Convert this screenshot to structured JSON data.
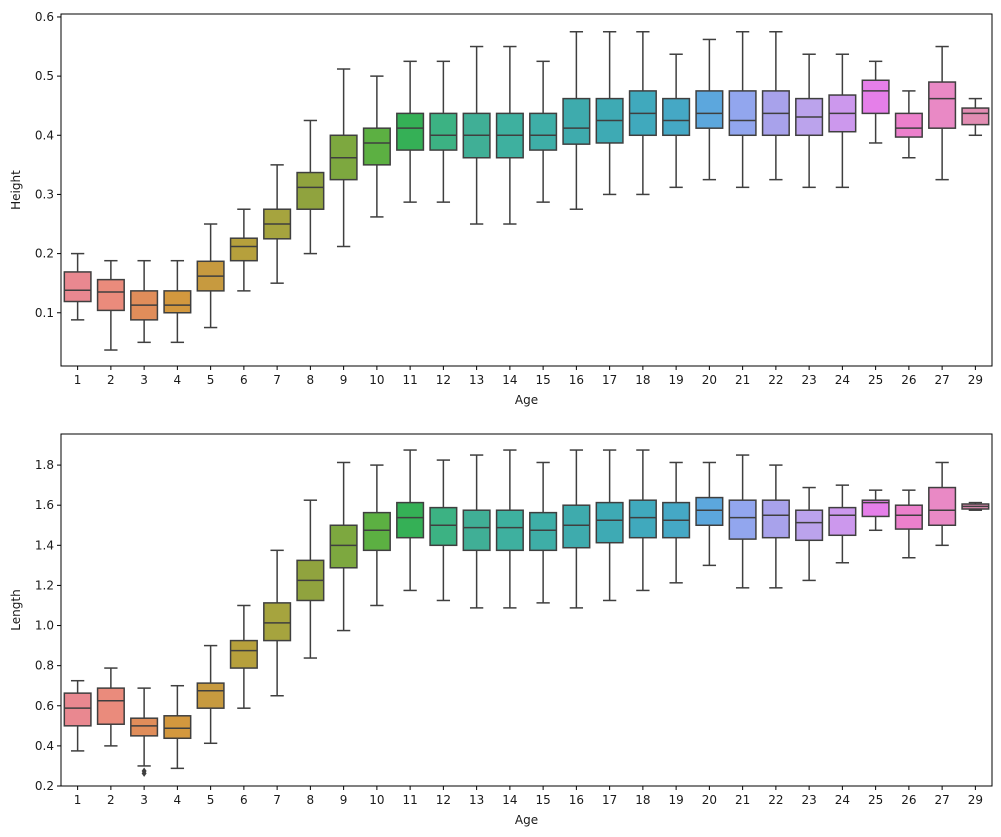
{
  "chart_data": [
    {
      "type": "boxplot",
      "xlabel": "Age",
      "ylabel": "Height",
      "ylim": [
        0.01,
        0.605
      ],
      "yticks": [
        0.1,
        0.2,
        0.3,
        0.4,
        0.5,
        0.6
      ],
      "ytick_labels": [
        "0.1",
        "0.2",
        "0.3",
        "0.4",
        "0.5",
        "0.6"
      ],
      "grid": false,
      "categories": [
        "1",
        "2",
        "3",
        "4",
        "5",
        "6",
        "7",
        "8",
        "9",
        "10",
        "11",
        "12",
        "13",
        "14",
        "15",
        "16",
        "17",
        "18",
        "19",
        "20",
        "21",
        "22",
        "23",
        "24",
        "25",
        "26",
        "27",
        "29"
      ],
      "boxes": [
        {
          "whislo": 0.088,
          "q1": 0.119,
          "med": 0.138,
          "q3": 0.169,
          "whishi": 0.2,
          "fliers": []
        },
        {
          "whislo": 0.037,
          "q1": 0.104,
          "med": 0.135,
          "q3": 0.156,
          "whishi": 0.188,
          "fliers": []
        },
        {
          "whislo": 0.05,
          "q1": 0.088,
          "med": 0.113,
          "q3": 0.137,
          "whishi": 0.188,
          "fliers": []
        },
        {
          "whislo": 0.05,
          "q1": 0.1,
          "med": 0.113,
          "q3": 0.137,
          "whishi": 0.188,
          "fliers": []
        },
        {
          "whislo": 0.075,
          "q1": 0.137,
          "med": 0.162,
          "q3": 0.187,
          "whishi": 0.25,
          "fliers": []
        },
        {
          "whislo": 0.137,
          "q1": 0.188,
          "med": 0.212,
          "q3": 0.226,
          "whishi": 0.275,
          "fliers": []
        },
        {
          "whislo": 0.15,
          "q1": 0.225,
          "med": 0.25,
          "q3": 0.275,
          "whishi": 0.35,
          "fliers": []
        },
        {
          "whislo": 0.2,
          "q1": 0.275,
          "med": 0.312,
          "q3": 0.337,
          "whishi": 0.425,
          "fliers": []
        },
        {
          "whislo": 0.212,
          "q1": 0.325,
          "med": 0.362,
          "q3": 0.4,
          "whishi": 0.512,
          "fliers": []
        },
        {
          "whislo": 0.262,
          "q1": 0.35,
          "med": 0.387,
          "q3": 0.412,
          "whishi": 0.5,
          "fliers": []
        },
        {
          "whislo": 0.287,
          "q1": 0.375,
          "med": 0.412,
          "q3": 0.437,
          "whishi": 0.525,
          "fliers": []
        },
        {
          "whislo": 0.287,
          "q1": 0.375,
          "med": 0.4,
          "q3": 0.437,
          "whishi": 0.525,
          "fliers": []
        },
        {
          "whislo": 0.25,
          "q1": 0.362,
          "med": 0.4,
          "q3": 0.437,
          "whishi": 0.55,
          "fliers": []
        },
        {
          "whislo": 0.25,
          "q1": 0.362,
          "med": 0.4,
          "q3": 0.437,
          "whishi": 0.55,
          "fliers": []
        },
        {
          "whislo": 0.287,
          "q1": 0.375,
          "med": 0.4,
          "q3": 0.437,
          "whishi": 0.525,
          "fliers": []
        },
        {
          "whislo": 0.275,
          "q1": 0.385,
          "med": 0.412,
          "q3": 0.462,
          "whishi": 0.575,
          "fliers": []
        },
        {
          "whislo": 0.3,
          "q1": 0.387,
          "med": 0.425,
          "q3": 0.462,
          "whishi": 0.575,
          "fliers": []
        },
        {
          "whislo": 0.3,
          "q1": 0.4,
          "med": 0.437,
          "q3": 0.475,
          "whishi": 0.575,
          "fliers": []
        },
        {
          "whislo": 0.312,
          "q1": 0.4,
          "med": 0.425,
          "q3": 0.462,
          "whishi": 0.537,
          "fliers": []
        },
        {
          "whislo": 0.325,
          "q1": 0.412,
          "med": 0.437,
          "q3": 0.475,
          "whishi": 0.562,
          "fliers": []
        },
        {
          "whislo": 0.312,
          "q1": 0.4,
          "med": 0.425,
          "q3": 0.475,
          "whishi": 0.575,
          "fliers": []
        },
        {
          "whislo": 0.325,
          "q1": 0.4,
          "med": 0.437,
          "q3": 0.475,
          "whishi": 0.575,
          "fliers": []
        },
        {
          "whislo": 0.312,
          "q1": 0.4,
          "med": 0.431,
          "q3": 0.462,
          "whishi": 0.537,
          "fliers": []
        },
        {
          "whislo": 0.312,
          "q1": 0.406,
          "med": 0.437,
          "q3": 0.468,
          "whishi": 0.537,
          "fliers": []
        },
        {
          "whislo": 0.387,
          "q1": 0.437,
          "med": 0.475,
          "q3": 0.493,
          "whishi": 0.525,
          "fliers": []
        },
        {
          "whislo": 0.362,
          "q1": 0.397,
          "med": 0.412,
          "q3": 0.437,
          "whishi": 0.475,
          "fliers": []
        },
        {
          "whislo": 0.325,
          "q1": 0.412,
          "med": 0.462,
          "q3": 0.49,
          "whishi": 0.55,
          "fliers": []
        },
        {
          "whislo": 0.4,
          "q1": 0.418,
          "med": 0.437,
          "q3": 0.446,
          "whishi": 0.462,
          "fliers": []
        }
      ]
    },
    {
      "type": "boxplot",
      "xlabel": "Age",
      "ylabel": "Length",
      "ylim": [
        0.2,
        1.955
      ],
      "yticks": [
        0.2,
        0.4,
        0.6,
        0.8,
        1.0,
        1.2,
        1.4,
        1.6,
        1.8
      ],
      "ytick_labels": [
        "0.2",
        "0.4",
        "0.6",
        "0.8",
        "1.0",
        "1.2",
        "1.4",
        "1.6",
        "1.8"
      ],
      "grid": false,
      "categories": [
        "1",
        "2",
        "3",
        "4",
        "5",
        "6",
        "7",
        "8",
        "9",
        "10",
        "11",
        "12",
        "13",
        "14",
        "15",
        "16",
        "17",
        "18",
        "19",
        "20",
        "21",
        "22",
        "23",
        "24",
        "25",
        "26",
        "27",
        "29"
      ],
      "boxes": [
        {
          "whislo": 0.375,
          "q1": 0.5,
          "med": 0.588,
          "q3": 0.663,
          "whishi": 0.725,
          "fliers": []
        },
        {
          "whislo": 0.4,
          "q1": 0.508,
          "med": 0.625,
          "q3": 0.688,
          "whishi": 0.788,
          "fliers": []
        },
        {
          "whislo": 0.3,
          "q1": 0.45,
          "med": 0.5,
          "q3": 0.538,
          "whishi": 0.688,
          "fliers": [
            0.275,
            0.263
          ]
        },
        {
          "whislo": 0.288,
          "q1": 0.438,
          "med": 0.488,
          "q3": 0.55,
          "whishi": 0.7,
          "fliers": []
        },
        {
          "whislo": 0.413,
          "q1": 0.588,
          "med": 0.675,
          "q3": 0.713,
          "whishi": 0.9,
          "fliers": []
        },
        {
          "whislo": 0.588,
          "q1": 0.788,
          "med": 0.875,
          "q3": 0.925,
          "whishi": 1.1,
          "fliers": []
        },
        {
          "whislo": 0.65,
          "q1": 0.925,
          "med": 1.013,
          "q3": 1.113,
          "whishi": 1.375,
          "fliers": []
        },
        {
          "whislo": 0.838,
          "q1": 1.125,
          "med": 1.225,
          "q3": 1.325,
          "whishi": 1.625,
          "fliers": []
        },
        {
          "whislo": 0.975,
          "q1": 1.288,
          "med": 1.4,
          "q3": 1.5,
          "whishi": 1.813,
          "fliers": []
        },
        {
          "whislo": 1.1,
          "q1": 1.375,
          "med": 1.475,
          "q3": 1.563,
          "whishi": 1.8,
          "fliers": []
        },
        {
          "whislo": 1.175,
          "q1": 1.438,
          "med": 1.538,
          "q3": 1.613,
          "whishi": 1.875,
          "fliers": []
        },
        {
          "whislo": 1.125,
          "q1": 1.4,
          "med": 1.5,
          "q3": 1.588,
          "whishi": 1.825,
          "fliers": []
        },
        {
          "whislo": 1.088,
          "q1": 1.375,
          "med": 1.488,
          "q3": 1.575,
          "whishi": 1.85,
          "fliers": []
        },
        {
          "whislo": 1.088,
          "q1": 1.375,
          "med": 1.488,
          "q3": 1.575,
          "whishi": 1.875,
          "fliers": []
        },
        {
          "whislo": 1.113,
          "q1": 1.375,
          "med": 1.475,
          "q3": 1.563,
          "whishi": 1.813,
          "fliers": []
        },
        {
          "whislo": 1.088,
          "q1": 1.388,
          "med": 1.5,
          "q3": 1.6,
          "whishi": 1.875,
          "fliers": []
        },
        {
          "whislo": 1.125,
          "q1": 1.413,
          "med": 1.525,
          "q3": 1.613,
          "whishi": 1.875,
          "fliers": []
        },
        {
          "whislo": 1.175,
          "q1": 1.438,
          "med": 1.538,
          "q3": 1.625,
          "whishi": 1.875,
          "fliers": []
        },
        {
          "whislo": 1.213,
          "q1": 1.438,
          "med": 1.525,
          "q3": 1.613,
          "whishi": 1.813,
          "fliers": []
        },
        {
          "whislo": 1.3,
          "q1": 1.5,
          "med": 1.575,
          "q3": 1.638,
          "whishi": 1.813,
          "fliers": []
        },
        {
          "whislo": 1.188,
          "q1": 1.431,
          "med": 1.538,
          "q3": 1.625,
          "whishi": 1.85,
          "fliers": []
        },
        {
          "whislo": 1.188,
          "q1": 1.438,
          "med": 1.55,
          "q3": 1.625,
          "whishi": 1.8,
          "fliers": []
        },
        {
          "whislo": 1.225,
          "q1": 1.425,
          "med": 1.513,
          "q3": 1.575,
          "whishi": 1.688,
          "fliers": []
        },
        {
          "whislo": 1.313,
          "q1": 1.45,
          "med": 1.55,
          "q3": 1.588,
          "whishi": 1.7,
          "fliers": []
        },
        {
          "whislo": 1.475,
          "q1": 1.544,
          "med": 1.613,
          "q3": 1.625,
          "whishi": 1.675,
          "fliers": []
        },
        {
          "whislo": 1.338,
          "q1": 1.481,
          "med": 1.55,
          "q3": 1.6,
          "whishi": 1.675,
          "fliers": []
        },
        {
          "whislo": 1.4,
          "q1": 1.5,
          "med": 1.575,
          "q3": 1.688,
          "whishi": 1.813,
          "fliers": []
        },
        {
          "whislo": 1.575,
          "q1": 1.581,
          "med": 1.594,
          "q3": 1.606,
          "whishi": 1.613,
          "fliers": []
        }
      ]
    }
  ],
  "style": {
    "box_colors": [
      "#e98890",
      "#ea8b7c",
      "#e08d5a",
      "#d3983e",
      "#c79a3f",
      "#b6a03c",
      "#a6a43e",
      "#90a33e",
      "#7da83f",
      "#5cb042",
      "#35b056",
      "#3cb283",
      "#40af96",
      "#3eb09f",
      "#3eaea7",
      "#3eabad",
      "#3eaab4",
      "#40a9bd",
      "#45a8c5",
      "#5ca7dd",
      "#92a6ee",
      "#a8a2eb",
      "#bba3ec",
      "#cc98ed",
      "#e57fe9",
      "#ec80cc",
      "#e989c5",
      "#e28db3"
    ],
    "line_color": "#3f3f3f"
  }
}
